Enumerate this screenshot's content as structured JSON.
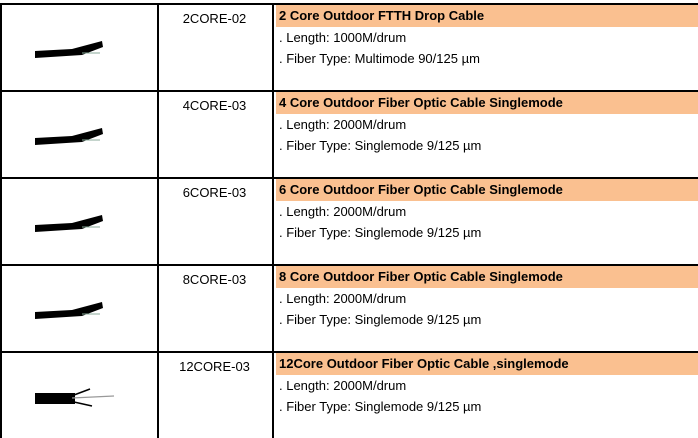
{
  "colors": {
    "header_bg": "#fac090",
    "border": "#000000"
  },
  "rows": [
    {
      "image": "drop-cable-icon",
      "code": "2CORE-02",
      "title": "2 Core Outdoor FTTH Drop Cable",
      "length": ". Length: 1000M/drum",
      "fiber": ". Fiber Type: Multimode 90/125 µm"
    },
    {
      "image": "drop-cable-icon",
      "code": "4CORE-03",
      "title": "4 Core Outdoor Fiber Optic Cable Singlemode",
      "length": ". Length: 2000M/drum",
      "fiber": ". Fiber Type: Singlemode 9/125 µm"
    },
    {
      "image": "drop-cable-icon",
      "code": "6CORE-03",
      "title": "6 Core Outdoor Fiber Optic Cable Singlemode",
      "length": ". Length: 2000M/drum",
      "fiber": ". Fiber Type: Singlemode 9/125 µm"
    },
    {
      "image": "drop-cable-icon",
      "code": "8CORE-03",
      "title": "8 Core Outdoor Fiber Optic Cable Singlemode",
      "length": ". Length: 2000M/drum",
      "fiber": ". Fiber Type: Singlemode 9/125 µm"
    },
    {
      "image": "round-cable-icon",
      "code": "12CORE-03",
      "title": "12Core Outdoor Fiber Optic Cable ,singlemode",
      "length": ". Length: 2000M/drum",
      "fiber": ". Fiber Type: Singlemode 9/125 µm"
    }
  ]
}
